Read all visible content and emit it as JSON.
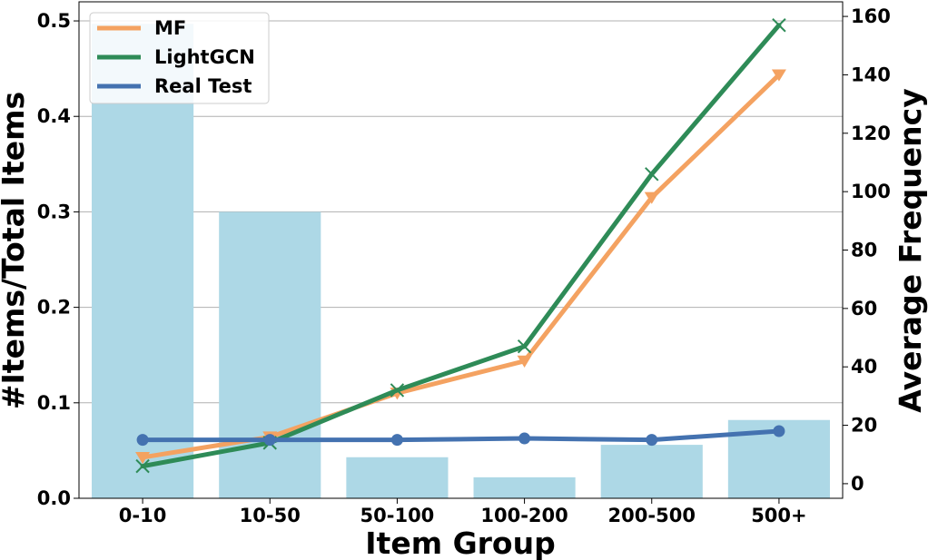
{
  "chart_data": {
    "type": "bar+line",
    "categories": [
      "0-10",
      "10-50",
      "50-100",
      "100-200",
      "200-500",
      "500+"
    ],
    "xlabel": "Item Group",
    "ylabel_left": "#Items/Total Items",
    "ylabel_right": "Average Frequency",
    "ylim_left": [
      0,
      0.52
    ],
    "ylim_right": [
      -5,
      165
    ],
    "yticks_left": [
      "0.0",
      "0.1",
      "0.2",
      "0.3",
      "0.4",
      "0.5"
    ],
    "yticks_right": [
      "0",
      "20",
      "40",
      "60",
      "80",
      "100",
      "120",
      "140",
      "160"
    ],
    "grid": true,
    "legend_position": "top-left",
    "bars": {
      "values": [
        0.497,
        0.3,
        0.043,
        0.022,
        0.056,
        0.082
      ],
      "color": "#add8e6"
    },
    "series": [
      {
        "name": "MF",
        "values": [
          9,
          16,
          31,
          42,
          98,
          140
        ],
        "color": "#f4a261",
        "marker": "triangle-down"
      },
      {
        "name": "LightGCN",
        "values": [
          6,
          14,
          32,
          47,
          106,
          157
        ],
        "color": "#2e8b57",
        "marker": "x"
      },
      {
        "name": "Real Test",
        "values": [
          15,
          15,
          15,
          15.5,
          15,
          18
        ],
        "color": "#4472b0",
        "marker": "circle"
      }
    ]
  }
}
